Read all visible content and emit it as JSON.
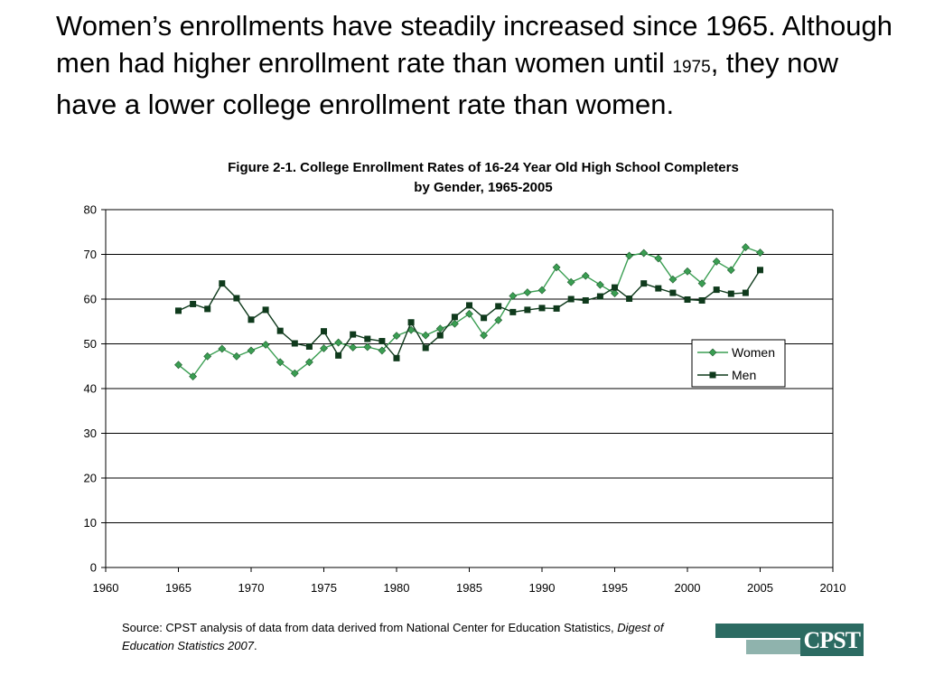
{
  "headline": {
    "part1": "Women’s enrollments have steadily increased since 1965. Although men had higher enrollment rate than women until ",
    "year": "1975",
    "part2": ", they now have a lower college enrollment rate than women."
  },
  "source": {
    "prefix": "Source: CPST analysis of data from data derived from National Center for Education Statistics, ",
    "italic": "Digest of Education Statistics 2007",
    "suffix": "."
  },
  "logo": {
    "text": "CPST"
  },
  "colors": {
    "women": "#3a9e52",
    "men": "#0f3a1c",
    "grid": "#000000"
  },
  "chart_data": {
    "type": "line",
    "title_line1": "Figure 2-1. College Enrollment Rates of 16-24 Year Old High School Completers",
    "title_line2": "by Gender, 1965-2005",
    "xlim": [
      1960,
      2010
    ],
    "ylim": [
      0,
      80
    ],
    "x_ticks": [
      1960,
      1965,
      1970,
      1975,
      1980,
      1985,
      1990,
      1995,
      2000,
      2005,
      2010
    ],
    "y_ticks": [
      0,
      10,
      20,
      30,
      40,
      50,
      60,
      70,
      80
    ],
    "grid": "horizontal",
    "legend_position": "right",
    "series": [
      {
        "name": "Women",
        "marker": "diamond",
        "x": [
          1965,
          1966,
          1967,
          1968,
          1969,
          1970,
          1971,
          1972,
          1973,
          1974,
          1975,
          1976,
          1977,
          1978,
          1979,
          1980,
          1981,
          1982,
          1983,
          1984,
          1985,
          1986,
          1987,
          1988,
          1989,
          1990,
          1991,
          1992,
          1993,
          1994,
          1995,
          1996,
          1997,
          1998,
          1999,
          2000,
          2001,
          2002,
          2003,
          2004,
          2005
        ],
        "y": [
          45.3,
          42.7,
          47.2,
          48.9,
          47.2,
          48.5,
          49.8,
          45.9,
          43.4,
          45.9,
          49.0,
          50.3,
          49.2,
          49.3,
          48.5,
          51.8,
          53.1,
          51.9,
          53.4,
          54.5,
          56.7,
          51.9,
          55.3,
          60.7,
          61.5,
          62.0,
          67.1,
          63.8,
          65.2,
          63.2,
          61.3,
          69.7,
          70.3,
          69.1,
          64.4,
          66.2,
          63.5,
          68.4,
          66.5,
          71.6,
          70.4
        ]
      },
      {
        "name": "Men",
        "marker": "square",
        "x": [
          1965,
          1966,
          1967,
          1968,
          1969,
          1970,
          1971,
          1972,
          1973,
          1974,
          1975,
          1976,
          1977,
          1978,
          1979,
          1980,
          1981,
          1982,
          1983,
          1984,
          1985,
          1986,
          1987,
          1988,
          1989,
          1990,
          1991,
          1992,
          1993,
          1994,
          1995,
          1996,
          1997,
          1998,
          1999,
          2000,
          2001,
          2002,
          2003,
          2004,
          2005
        ],
        "y": [
          57.4,
          58.9,
          57.8,
          63.5,
          60.2,
          55.4,
          57.6,
          52.9,
          50.1,
          49.4,
          52.8,
          47.4,
          52.1,
          51.1,
          50.6,
          46.8,
          54.8,
          49.1,
          51.9,
          56.0,
          58.6,
          55.8,
          58.4,
          57.1,
          57.6,
          58.0,
          57.9,
          60.0,
          59.7,
          60.6,
          62.6,
          60.1,
          63.5,
          62.4,
          61.4,
          59.9,
          59.7,
          62.1,
          61.2,
          61.4,
          66.5
        ]
      }
    ]
  }
}
